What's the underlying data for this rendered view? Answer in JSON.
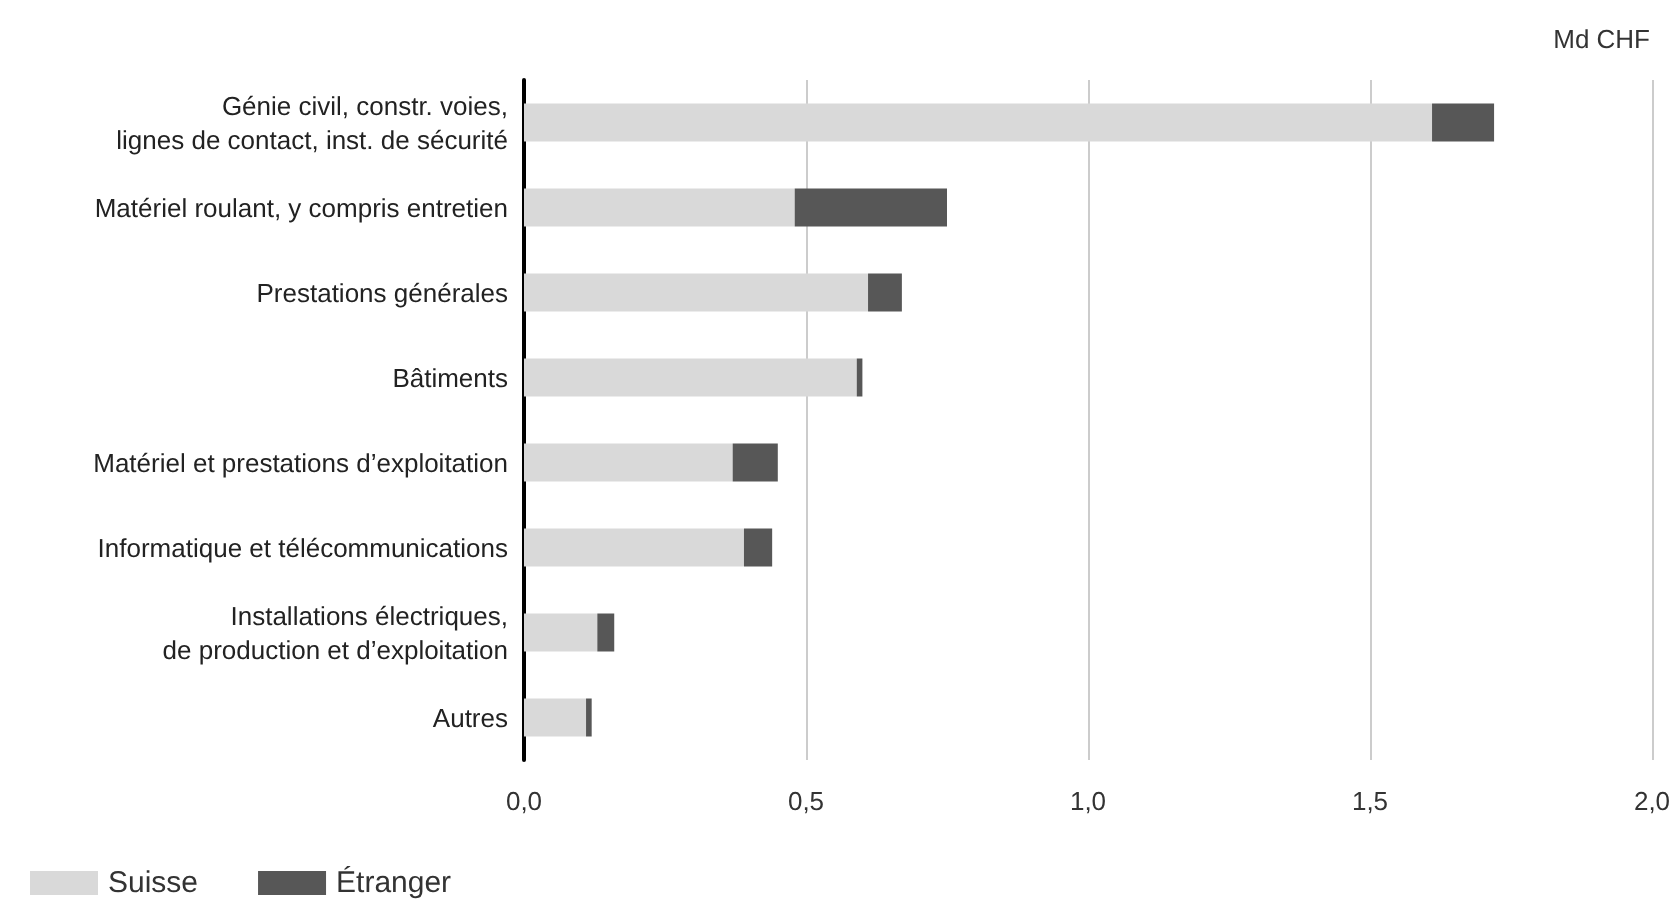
{
  "chart_data": {
    "type": "bar",
    "orientation": "horizontal",
    "stacked": true,
    "xlabel": "Md CHF",
    "categories": [
      "Génie civil, constr. voies,\nlignes de contact, inst. de sécurité",
      "Matériel roulant, y compris entretien",
      "Prestations générales",
      "Bâtiments",
      "Matériel et prestations d’exploitation",
      "Informatique et télécommunications",
      "Installations électriques,\nde production et d’exploitation",
      "Autres"
    ],
    "series": [
      {
        "name": "Suisse",
        "color": "#d9d9d9",
        "values": [
          1.61,
          0.48,
          0.61,
          0.59,
          0.37,
          0.39,
          0.13,
          0.11
        ]
      },
      {
        "name": "Étranger",
        "color": "#575757",
        "values": [
          0.11,
          0.27,
          0.06,
          0.01,
          0.08,
          0.05,
          0.03,
          0.01
        ]
      }
    ],
    "xlim": [
      0,
      2
    ],
    "xticks": [
      {
        "value": 0,
        "label": "0,0"
      },
      {
        "value": 0.5,
        "label": "0,5"
      },
      {
        "value": 1,
        "label": "1,0"
      },
      {
        "value": 1.5,
        "label": "1,5"
      },
      {
        "value": 2,
        "label": "2,0"
      }
    ],
    "grid": "x",
    "legend": "bottom left"
  }
}
